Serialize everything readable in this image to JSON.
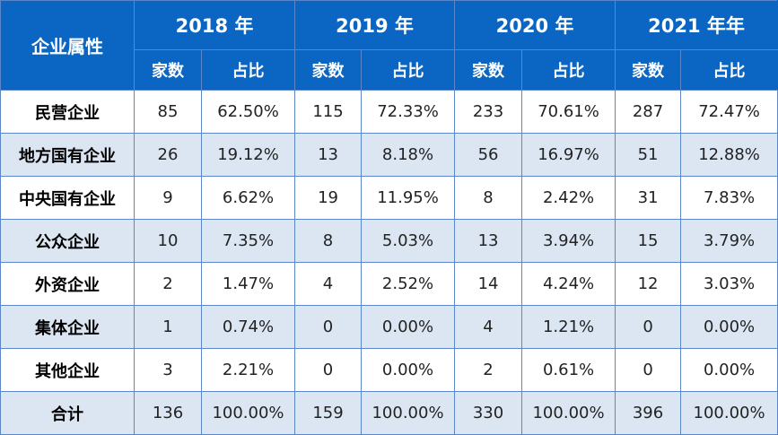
{
  "table": {
    "corner_label": "企业属性",
    "years": [
      "2018 年",
      "2019 年",
      "2020 年",
      "2021 年年"
    ],
    "sub_headers": [
      "家数",
      "占比"
    ],
    "rows": [
      {
        "label": "民营企业",
        "cells": [
          "85",
          "62.50%",
          "115",
          "72.33%",
          "233",
          "70.61%",
          "287",
          "72.47%"
        ]
      },
      {
        "label": "地方国有企业",
        "cells": [
          "26",
          "19.12%",
          "13",
          "8.18%",
          "56",
          "16.97%",
          "51",
          "12.88%"
        ]
      },
      {
        "label": "中央国有企业",
        "cells": [
          "9",
          "6.62%",
          "19",
          "11.95%",
          "8",
          "2.42%",
          "31",
          "7.83%"
        ]
      },
      {
        "label": "公众企业",
        "cells": [
          "10",
          "7.35%",
          "8",
          "5.03%",
          "13",
          "3.94%",
          "15",
          "3.79%"
        ]
      },
      {
        "label": "外资企业",
        "cells": [
          "2",
          "1.47%",
          "4",
          "2.52%",
          "14",
          "4.24%",
          "12",
          "3.03%"
        ]
      },
      {
        "label": "集体企业",
        "cells": [
          "1",
          "0.74%",
          "0",
          "0.00%",
          "4",
          "1.21%",
          "0",
          "0.00%"
        ]
      },
      {
        "label": "其他企业",
        "cells": [
          "3",
          "2.21%",
          "0",
          "0.00%",
          "2",
          "0.61%",
          "0",
          "0.00%"
        ]
      },
      {
        "label": "合计",
        "cells": [
          "136",
          "100.00%",
          "159",
          "100.00%",
          "330",
          "100.00%",
          "396",
          "100.00%"
        ]
      }
    ]
  },
  "colors": {
    "header_bg": "#0a66c2",
    "header_text": "#ffffff",
    "stripe": "#dce6f2",
    "border": "#5b87c8"
  }
}
